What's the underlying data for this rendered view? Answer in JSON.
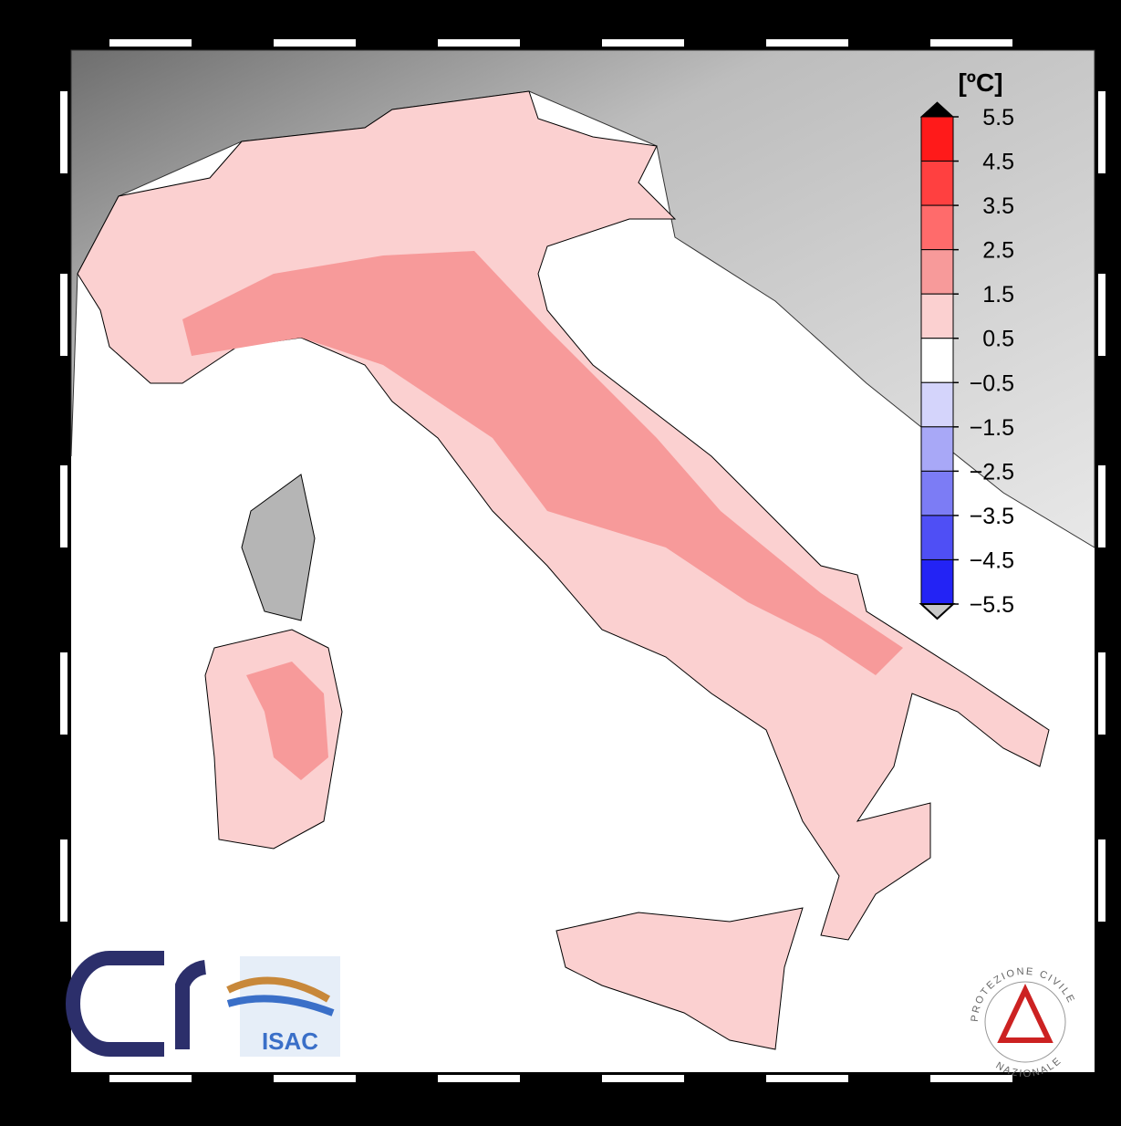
{
  "colorbar": {
    "unit": "[ºC]",
    "ticks": [
      5.5,
      4.5,
      3.5,
      2.5,
      1.5,
      0.5,
      {
        "value": -0.5,
        "label": "−0.5"
      },
      {
        "value": -1.5,
        "label": "−1.5"
      },
      {
        "value": -2.5,
        "label": "−2.5"
      },
      {
        "value": -3.5,
        "label": "−3.5"
      },
      {
        "value": -4.5,
        "label": "−4.5"
      },
      {
        "value": -5.5,
        "label": "−5.5"
      }
    ],
    "colors": [
      "#ff1a1a",
      "#ff4040",
      "#ff6b6b",
      "#f79a9a",
      "#fbd0d0",
      "#ffffff",
      "#d4d4fb",
      "#a8a8f7",
      "#7c7cf5",
      "#4f4ff5",
      "#2323f5"
    ],
    "over_color": "#000000",
    "under_color": "#c8c8c8"
  },
  "logos": {
    "isac": "ISAC",
    "protezione": "PROTEZIONE CIVILE",
    "nazionale": "NAZIONALE"
  }
}
